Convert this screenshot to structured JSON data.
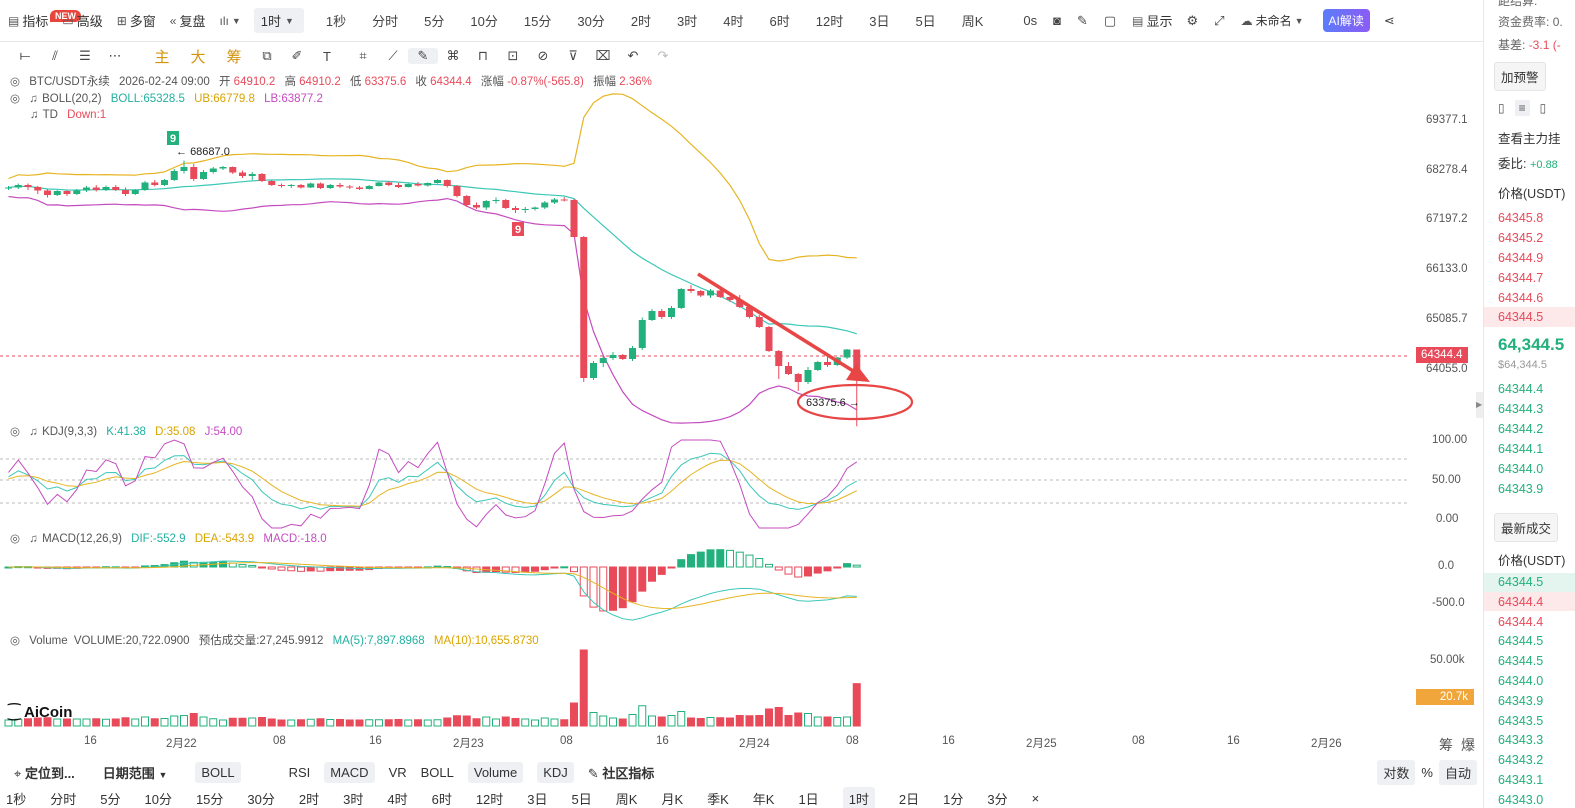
{
  "toolbar": {
    "indicators": "指标",
    "new_badge": "NEW",
    "advanced": "高级",
    "multi_window": "多窗",
    "replay": "复盘",
    "timeframe_selected": "1时",
    "timeframes": [
      "1秒",
      "分时",
      "5分",
      "10分",
      "15分",
      "30分",
      "2时",
      "3时",
      "4时",
      "6时",
      "12时",
      "3日",
      "5日",
      "周K"
    ],
    "refresh": "0s",
    "display": "显示",
    "layout_name": "未命名",
    "ai_read": "AI解读"
  },
  "drawbar": {
    "main": "主",
    "big": "大",
    "chip": "筹"
  },
  "legend": {
    "symbol": "BTC/USDT永续",
    "datetime": "2026-02-24 09:00",
    "open_label": "开",
    "open": "64910.2",
    "high_label": "高",
    "high": "64910.2",
    "low_label": "低",
    "low": "63375.6",
    "close_label": "收",
    "close": "64344.4",
    "change_label": "涨幅",
    "change": "-0.87%(-565.8)",
    "amp_label": "振幅",
    "amp": "2.36%",
    "boll": "BOLL(20,2)",
    "boll_mid": "BOLL:65328.5",
    "boll_ub": "UB:66779.8",
    "boll_lb": "LB:63877.2",
    "td": "TD",
    "td_val": "Down:1",
    "kdj": "KDJ(9,3,3)",
    "kdj_k": "K:41.38",
    "kdj_d": "D:35.08",
    "kdj_j": "J:54.00",
    "macd": "MACD(12,26,9)",
    "macd_dif": "DIF:-552.9",
    "macd_dea": "DEA:-543.9",
    "macd_val": "MACD:-18.0",
    "vol": "Volume",
    "vol_val": "VOLUME:20,722.0900",
    "vol_est": "预估成交量:27,245.9912",
    "vol_ma5": "MA(5):7,897.8968",
    "vol_ma10": "MA(10):10,655.8730"
  },
  "axis": {
    "price_ticks": [
      "69377.1",
      "68278.4",
      "67197.2",
      "66133.0",
      "65085.7",
      "64055.0"
    ],
    "current_price": "64344.4",
    "kdj_ticks": [
      "100.00",
      "50.00",
      "0.00"
    ],
    "macd_ticks": [
      "0.0",
      "-500.0"
    ],
    "vol_ticks": [
      "50.00k"
    ],
    "vol_current": "20.7k",
    "x_ticks": [
      "16",
      "2月22",
      "08",
      "16",
      "2月23",
      "08",
      "16",
      "2月24",
      "08",
      "16",
      "2月25",
      "08",
      "16",
      "2月26"
    ],
    "corner": [
      "筹",
      "爆"
    ]
  },
  "annotations": {
    "high_mark": "68687.0",
    "low_mark": "63375.6",
    "td9_a": "9",
    "td9_b": "9",
    "watermark": "AiCoin"
  },
  "bottom1": {
    "locate": "定位到...",
    "date_range": "日期范围",
    "boll": "BOLL",
    "indicators": [
      "RSI",
      "MACD",
      "VR",
      "BOLL",
      "Volume",
      "KDJ"
    ],
    "active": [
      "MACD",
      "Volume",
      "KDJ"
    ],
    "community": "社区指标",
    "log": "对数",
    "percent": "%",
    "auto": "自动"
  },
  "bottom2": {
    "items": [
      "1秒",
      "分时",
      "5分",
      "10分",
      "15分",
      "30分",
      "2时",
      "3时",
      "4时",
      "6时",
      "12时",
      "3日",
      "5日",
      "周K",
      "月K",
      "季K",
      "年K",
      "1日",
      "1时",
      "2日",
      "1分",
      "3分"
    ],
    "active": "1时",
    "close": "×"
  },
  "right_panel": {
    "r1": "距结算:",
    "funding_label": "资金费率:",
    "funding_val": "0.",
    "basis_label": "基差:",
    "basis_val": "-3.1 (-",
    "alert": "加预警",
    "view_main": "查看主力挂",
    "ratio_label": "委比:",
    "ratio_val": "+0.88",
    "price_header": "价格(USDT)",
    "asks": [
      "64345.8",
      "64345.2",
      "64344.9",
      "64344.7",
      "64344.6",
      "64344.5"
    ],
    "last_big": "64,344.5",
    "last_small": "$64,344.5",
    "bids": [
      "64344.4",
      "64344.3",
      "64344.2",
      "64344.1",
      "64344.0",
      "64343.9"
    ],
    "latest_trades": "最新成交",
    "trades_header": "价格(USDT)",
    "trades": [
      {
        "p": "64344.5",
        "side": "buy"
      },
      {
        "p": "64344.4",
        "side": "sell"
      },
      {
        "p": "64344.4",
        "side": "sell"
      },
      {
        "p": "64344.5",
        "side": "buy"
      },
      {
        "p": "64344.5",
        "side": "buy"
      },
      {
        "p": "64344.0",
        "side": "buy"
      },
      {
        "p": "64343.9",
        "side": "buy"
      },
      {
        "p": "64343.5",
        "side": "buy"
      },
      {
        "p": "64343.3",
        "side": "buy"
      },
      {
        "p": "64343.2",
        "side": "buy"
      },
      {
        "p": "64343.1",
        "side": "buy"
      },
      {
        "p": "64343.0",
        "side": "buy"
      }
    ]
  },
  "colors": {
    "up": "#e84a5a",
    "down": "#22b07c",
    "boll_ub": "#e6b422",
    "boll_mid": "#3cc7b8",
    "boll_lb": "#c44cc0"
  },
  "chart_data": {
    "type": "candlestick",
    "price_range": [
      63700,
      69900
    ],
    "candles_ohlc": [
      [
        68140,
        68180,
        68100,
        68150
      ],
      [
        68150,
        68230,
        68120,
        68200
      ],
      [
        68200,
        68230,
        68100,
        68160
      ],
      [
        68160,
        68180,
        68020,
        68090
      ],
      [
        68090,
        68120,
        67950,
        68000
      ],
      [
        68000,
        68100,
        67980,
        68080
      ],
      [
        68080,
        68100,
        67980,
        68020
      ],
      [
        68020,
        68120,
        68000,
        68090
      ],
      [
        68090,
        68180,
        68060,
        68150
      ],
      [
        68150,
        68200,
        68070,
        68100
      ],
      [
        68100,
        68190,
        68080,
        68160
      ],
      [
        68160,
        68200,
        68080,
        68100
      ],
      [
        68100,
        68150,
        67980,
        68020
      ],
      [
        68020,
        68120,
        68000,
        68100
      ],
      [
        68100,
        68280,
        68080,
        68250
      ],
      [
        68250,
        68300,
        68170,
        68200
      ],
      [
        68200,
        68320,
        68180,
        68300
      ],
      [
        68300,
        68520,
        68280,
        68480
      ],
      [
        68480,
        68687,
        68430,
        68560
      ],
      [
        68560,
        68620,
        68280,
        68320
      ],
      [
        68320,
        68500,
        68300,
        68460
      ],
      [
        68460,
        68560,
        68430,
        68530
      ],
      [
        68530,
        68580,
        68500,
        68560
      ],
      [
        68560,
        68570,
        68420,
        68450
      ],
      [
        68450,
        68490,
        68340,
        68380
      ],
      [
        68380,
        68460,
        68300,
        68420
      ],
      [
        68420,
        68440,
        68260,
        68280
      ],
      [
        68280,
        68300,
        68180,
        68200
      ],
      [
        68200,
        68230,
        68150,
        68180
      ],
      [
        68180,
        68220,
        68140,
        68200
      ],
      [
        68200,
        68220,
        68130,
        68150
      ],
      [
        68150,
        68250,
        68140,
        68230
      ],
      [
        68230,
        68250,
        68120,
        68140
      ],
      [
        68140,
        68220,
        68120,
        68200
      ],
      [
        68200,
        68240,
        68140,
        68170
      ],
      [
        68170,
        68200,
        68120,
        68150
      ],
      [
        68150,
        68180,
        68100,
        68120
      ],
      [
        68120,
        68200,
        68110,
        68180
      ],
      [
        68180,
        68260,
        68170,
        68250
      ],
      [
        68250,
        68270,
        68180,
        68200
      ],
      [
        68200,
        68240,
        68140,
        68160
      ],
      [
        68160,
        68230,
        68150,
        68220
      ],
      [
        68220,
        68260,
        68170,
        68190
      ],
      [
        68190,
        68250,
        68170,
        68240
      ],
      [
        68240,
        68320,
        68230,
        68300
      ],
      [
        68300,
        68310,
        68150,
        68180
      ],
      [
        68180,
        68200,
        67950,
        67980
      ],
      [
        67980,
        68000,
        67760,
        67800
      ],
      [
        67800,
        67850,
        67720,
        67750
      ],
      [
        67750,
        67900,
        67700,
        67880
      ],
      [
        67880,
        67950,
        67830,
        67900
      ],
      [
        67900,
        67920,
        67720,
        67740
      ],
      [
        67740,
        67780,
        67640,
        67700
      ],
      [
        67700,
        67760,
        67640,
        67720
      ],
      [
        67720,
        67770,
        67690,
        67750
      ],
      [
        67750,
        67880,
        67720,
        67850
      ],
      [
        67850,
        67940,
        67820,
        67910
      ],
      [
        67910,
        67960,
        67870,
        67900
      ],
      [
        67900,
        67920,
        67160,
        67160
      ],
      [
        67160,
        67180,
        64260,
        64340
      ],
      [
        64340,
        64680,
        64300,
        64640
      ],
      [
        64640,
        64800,
        64560,
        64740
      ],
      [
        64740,
        64860,
        64700,
        64800
      ],
      [
        64800,
        64820,
        64700,
        64720
      ],
      [
        64720,
        64980,
        64680,
        64940
      ],
      [
        64940,
        65550,
        64900,
        65500
      ],
      [
        65500,
        65720,
        65480,
        65680
      ],
      [
        65680,
        65720,
        65520,
        65560
      ],
      [
        65560,
        65780,
        65520,
        65740
      ],
      [
        65740,
        66140,
        65720,
        66120
      ],
      [
        66120,
        66200,
        66040,
        66080
      ],
      [
        66080,
        66100,
        65960,
        65990
      ],
      [
        65990,
        66120,
        65940,
        66090
      ],
      [
        66090,
        66110,
        65940,
        65960
      ],
      [
        65960,
        66020,
        65860,
        65900
      ],
      [
        65900,
        66000,
        65740,
        65760
      ],
      [
        65760,
        65780,
        65530,
        65560
      ],
      [
        65560,
        65600,
        65340,
        65360
      ],
      [
        65360,
        65380,
        64860,
        64880
      ],
      [
        64880,
        64900,
        64320,
        64580
      ],
      [
        64580,
        64660,
        64400,
        64420
      ],
      [
        64420,
        64440,
        64080,
        64260
      ],
      [
        64260,
        64560,
        64220,
        64500
      ],
      [
        64500,
        64680,
        64480,
        64660
      ],
      [
        64660,
        64760,
        64560,
        64600
      ],
      [
        64600,
        64760,
        64580,
        64750
      ],
      [
        64750,
        64920,
        64720,
        64910
      ],
      [
        64910,
        64910,
        63376,
        64344
      ]
    ]
  }
}
